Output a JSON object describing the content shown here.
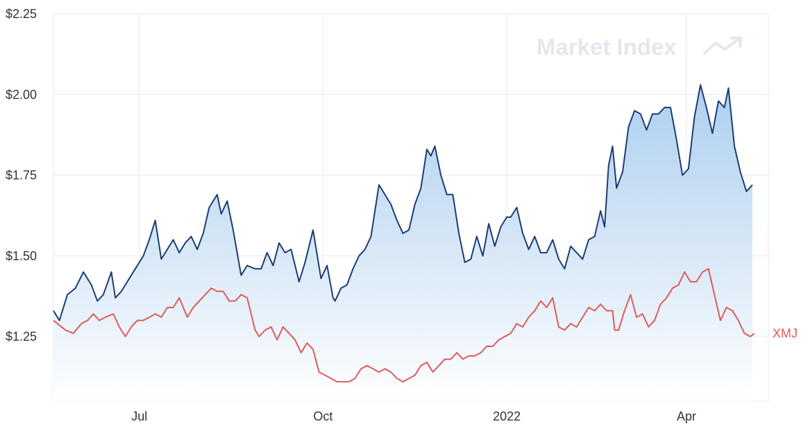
{
  "watermark": "Market Index",
  "colors": {
    "primary_line": "#1b3c74",
    "primary_fill_top": "#a9cdee",
    "primary_fill_bottom": "#ffffff",
    "comparison_line": "#e05a5a",
    "grid": "#e7e9ee",
    "axis_text": "#333333",
    "watermark": "#e3e8ef"
  },
  "chart_data": {
    "type": "line",
    "title": "",
    "xlabel": "",
    "ylabel": "",
    "ylim": [
      1.05,
      2.25
    ],
    "yticks": [
      1.25,
      1.5,
      1.75,
      2.0,
      2.25
    ],
    "ytick_labels": [
      "$1.25",
      "$1.50",
      "$1.75",
      "$2.00",
      "$2.25"
    ],
    "x_range": [
      "2021-05-19",
      "2022-05-12"
    ],
    "xticks": [
      {
        "date": "2021-07-01",
        "label": "Jul"
      },
      {
        "date": "2021-10-01",
        "label": "Oct"
      },
      {
        "date": "2022-01-01",
        "label": "2022"
      },
      {
        "date": "2022-04-01",
        "label": "Apr"
      }
    ],
    "grid": true,
    "legend": "label at end of comparison line",
    "series": [
      {
        "name": "",
        "style": "area",
        "points": [
          [
            "2021-05-19",
            1.33
          ],
          [
            "2021-05-22",
            1.3
          ],
          [
            "2021-05-26",
            1.38
          ],
          [
            "2021-05-30",
            1.4
          ],
          [
            "2021-06-03",
            1.45
          ],
          [
            "2021-06-07",
            1.41
          ],
          [
            "2021-06-10",
            1.36
          ],
          [
            "2021-06-13",
            1.38
          ],
          [
            "2021-06-17",
            1.45
          ],
          [
            "2021-06-19",
            1.37
          ],
          [
            "2021-06-22",
            1.39
          ],
          [
            "2021-06-26",
            1.43
          ],
          [
            "2021-06-30",
            1.47
          ],
          [
            "2021-07-03",
            1.5
          ],
          [
            "2021-07-06",
            1.55
          ],
          [
            "2021-07-09",
            1.61
          ],
          [
            "2021-07-12",
            1.49
          ],
          [
            "2021-07-15",
            1.52
          ],
          [
            "2021-07-18",
            1.55
          ],
          [
            "2021-07-21",
            1.51
          ],
          [
            "2021-07-24",
            1.54
          ],
          [
            "2021-07-27",
            1.56
          ],
          [
            "2021-07-30",
            1.52
          ],
          [
            "2021-08-02",
            1.57
          ],
          [
            "2021-08-05",
            1.65
          ],
          [
            "2021-08-09",
            1.69
          ],
          [
            "2021-08-11",
            1.63
          ],
          [
            "2021-08-14",
            1.67
          ],
          [
            "2021-08-17",
            1.58
          ],
          [
            "2021-08-21",
            1.44
          ],
          [
            "2021-08-24",
            1.47
          ],
          [
            "2021-08-28",
            1.46
          ],
          [
            "2021-08-31",
            1.46
          ],
          [
            "2021-09-03",
            1.51
          ],
          [
            "2021-09-06",
            1.47
          ],
          [
            "2021-09-09",
            1.54
          ],
          [
            "2021-09-12",
            1.51
          ],
          [
            "2021-09-15",
            1.52
          ],
          [
            "2021-09-19",
            1.42
          ],
          [
            "2021-09-22",
            1.48
          ],
          [
            "2021-09-26",
            1.58
          ],
          [
            "2021-09-30",
            1.43
          ],
          [
            "2021-10-03",
            1.47
          ],
          [
            "2021-10-06",
            1.37
          ],
          [
            "2021-10-07",
            1.36
          ],
          [
            "2021-10-10",
            1.4
          ],
          [
            "2021-10-13",
            1.41
          ],
          [
            "2021-10-16",
            1.46
          ],
          [
            "2021-10-19",
            1.5
          ],
          [
            "2021-10-22",
            1.52
          ],
          [
            "2021-10-25",
            1.56
          ],
          [
            "2021-10-29",
            1.72
          ],
          [
            "2021-11-01",
            1.69
          ],
          [
            "2021-11-04",
            1.66
          ],
          [
            "2021-11-07",
            1.61
          ],
          [
            "2021-11-10",
            1.57
          ],
          [
            "2021-11-13",
            1.58
          ],
          [
            "2021-11-16",
            1.66
          ],
          [
            "2021-11-19",
            1.71
          ],
          [
            "2021-11-22",
            1.83
          ],
          [
            "2021-11-24",
            1.81
          ],
          [
            "2021-11-26",
            1.84
          ],
          [
            "2021-11-29",
            1.75
          ],
          [
            "2021-12-02",
            1.69
          ],
          [
            "2021-12-05",
            1.69
          ],
          [
            "2021-12-08",
            1.57
          ],
          [
            "2021-12-11",
            1.48
          ],
          [
            "2021-12-14",
            1.49
          ],
          [
            "2021-12-17",
            1.56
          ],
          [
            "2021-12-20",
            1.5
          ],
          [
            "2021-12-23",
            1.6
          ],
          [
            "2021-12-26",
            1.53
          ],
          [
            "2021-12-29",
            1.59
          ],
          [
            "2022-01-01",
            1.62
          ],
          [
            "2022-01-03",
            1.62
          ],
          [
            "2022-01-06",
            1.65
          ],
          [
            "2022-01-09",
            1.57
          ],
          [
            "2022-01-12",
            1.52
          ],
          [
            "2022-01-15",
            1.56
          ],
          [
            "2022-01-18",
            1.51
          ],
          [
            "2022-01-21",
            1.51
          ],
          [
            "2022-01-24",
            1.55
          ],
          [
            "2022-01-27",
            1.49
          ],
          [
            "2022-01-30",
            1.46
          ],
          [
            "2022-02-02",
            1.53
          ],
          [
            "2022-02-05",
            1.51
          ],
          [
            "2022-02-08",
            1.49
          ],
          [
            "2022-02-11",
            1.55
          ],
          [
            "2022-02-14",
            1.56
          ],
          [
            "2022-02-17",
            1.64
          ],
          [
            "2022-02-19",
            1.59
          ],
          [
            "2022-02-21",
            1.78
          ],
          [
            "2022-02-23",
            1.84
          ],
          [
            "2022-02-25",
            1.71
          ],
          [
            "2022-02-28",
            1.76
          ],
          [
            "2022-03-03",
            1.9
          ],
          [
            "2022-03-06",
            1.95
          ],
          [
            "2022-03-09",
            1.94
          ],
          [
            "2022-03-12",
            1.89
          ],
          [
            "2022-03-15",
            1.94
          ],
          [
            "2022-03-18",
            1.94
          ],
          [
            "2022-03-21",
            1.96
          ],
          [
            "2022-03-24",
            1.96
          ],
          [
            "2022-03-27",
            1.86
          ],
          [
            "2022-03-30",
            1.75
          ],
          [
            "2022-04-02",
            1.77
          ],
          [
            "2022-04-05",
            1.93
          ],
          [
            "2022-04-08",
            2.03
          ],
          [
            "2022-04-11",
            1.96
          ],
          [
            "2022-04-14",
            1.88
          ],
          [
            "2022-04-17",
            1.98
          ],
          [
            "2022-04-20",
            1.96
          ],
          [
            "2022-04-22",
            2.02
          ],
          [
            "2022-04-25",
            1.84
          ],
          [
            "2022-04-28",
            1.76
          ],
          [
            "2022-05-01",
            1.7
          ],
          [
            "2022-05-04",
            1.72
          ]
        ]
      },
      {
        "name": "XMJ",
        "style": "line",
        "points": [
          [
            "2021-05-19",
            1.3
          ],
          [
            "2021-05-25",
            1.27
          ],
          [
            "2021-05-29",
            1.26
          ],
          [
            "2021-06-02",
            1.29
          ],
          [
            "2021-06-05",
            1.3
          ],
          [
            "2021-06-08",
            1.32
          ],
          [
            "2021-06-11",
            1.3
          ],
          [
            "2021-06-14",
            1.31
          ],
          [
            "2021-06-18",
            1.32
          ],
          [
            "2021-06-21",
            1.28
          ],
          [
            "2021-06-24",
            1.25
          ],
          [
            "2021-06-27",
            1.28
          ],
          [
            "2021-06-30",
            1.3
          ],
          [
            "2021-07-03",
            1.3
          ],
          [
            "2021-07-06",
            1.31
          ],
          [
            "2021-07-09",
            1.32
          ],
          [
            "2021-07-12",
            1.31
          ],
          [
            "2021-07-15",
            1.34
          ],
          [
            "2021-07-18",
            1.34
          ],
          [
            "2021-07-21",
            1.37
          ],
          [
            "2021-07-25",
            1.31
          ],
          [
            "2021-07-28",
            1.34
          ],
          [
            "2021-07-31",
            1.36
          ],
          [
            "2021-08-03",
            1.38
          ],
          [
            "2021-08-06",
            1.4
          ],
          [
            "2021-08-09",
            1.39
          ],
          [
            "2021-08-12",
            1.39
          ],
          [
            "2021-08-15",
            1.36
          ],
          [
            "2021-08-18",
            1.36
          ],
          [
            "2021-08-21",
            1.38
          ],
          [
            "2021-08-24",
            1.37
          ],
          [
            "2021-08-28",
            1.27
          ],
          [
            "2021-08-30",
            1.25
          ],
          [
            "2021-09-02",
            1.27
          ],
          [
            "2021-09-05",
            1.28
          ],
          [
            "2021-09-08",
            1.24
          ],
          [
            "2021-09-11",
            1.28
          ],
          [
            "2021-09-14",
            1.26
          ],
          [
            "2021-09-17",
            1.24
          ],
          [
            "2021-09-20",
            1.2
          ],
          [
            "2021-09-23",
            1.23
          ],
          [
            "2021-09-26",
            1.21
          ],
          [
            "2021-09-29",
            1.14
          ],
          [
            "2021-10-02",
            1.13
          ],
          [
            "2021-10-05",
            1.12
          ],
          [
            "2021-10-08",
            1.11
          ],
          [
            "2021-10-11",
            1.11
          ],
          [
            "2021-10-14",
            1.11
          ],
          [
            "2021-10-17",
            1.12
          ],
          [
            "2021-10-20",
            1.15
          ],
          [
            "2021-10-23",
            1.16
          ],
          [
            "2021-10-26",
            1.15
          ],
          [
            "2021-10-29",
            1.14
          ],
          [
            "2021-11-01",
            1.15
          ],
          [
            "2021-11-04",
            1.14
          ],
          [
            "2021-11-07",
            1.12
          ],
          [
            "2021-11-10",
            1.11
          ],
          [
            "2021-11-13",
            1.12
          ],
          [
            "2021-11-16",
            1.13
          ],
          [
            "2021-11-19",
            1.16
          ],
          [
            "2021-11-22",
            1.17
          ],
          [
            "2021-11-25",
            1.14
          ],
          [
            "2021-11-28",
            1.16
          ],
          [
            "2021-12-01",
            1.18
          ],
          [
            "2021-12-04",
            1.18
          ],
          [
            "2021-12-07",
            1.2
          ],
          [
            "2021-12-10",
            1.18
          ],
          [
            "2021-12-13",
            1.19
          ],
          [
            "2021-12-16",
            1.19
          ],
          [
            "2021-12-19",
            1.2
          ],
          [
            "2021-12-22",
            1.22
          ],
          [
            "2021-12-25",
            1.22
          ],
          [
            "2021-12-28",
            1.24
          ],
          [
            "2021-12-31",
            1.25
          ],
          [
            "2022-01-03",
            1.26
          ],
          [
            "2022-01-06",
            1.29
          ],
          [
            "2022-01-09",
            1.28
          ],
          [
            "2022-01-12",
            1.31
          ],
          [
            "2022-01-15",
            1.33
          ],
          [
            "2022-01-18",
            1.36
          ],
          [
            "2022-01-21",
            1.34
          ],
          [
            "2022-01-24",
            1.37
          ],
          [
            "2022-01-27",
            1.28
          ],
          [
            "2022-01-30",
            1.27
          ],
          [
            "2022-02-02",
            1.29
          ],
          [
            "2022-02-05",
            1.28
          ],
          [
            "2022-02-08",
            1.31
          ],
          [
            "2022-02-11",
            1.34
          ],
          [
            "2022-02-14",
            1.33
          ],
          [
            "2022-02-17",
            1.35
          ],
          [
            "2022-02-20",
            1.33
          ],
          [
            "2022-02-23",
            1.33
          ],
          [
            "2022-02-24",
            1.27
          ],
          [
            "2022-02-26",
            1.27
          ],
          [
            "2022-03-01",
            1.33
          ],
          [
            "2022-03-04",
            1.38
          ],
          [
            "2022-03-07",
            1.31
          ],
          [
            "2022-03-10",
            1.32
          ],
          [
            "2022-03-13",
            1.28
          ],
          [
            "2022-03-16",
            1.3
          ],
          [
            "2022-03-19",
            1.35
          ],
          [
            "2022-03-22",
            1.37
          ],
          [
            "2022-03-25",
            1.4
          ],
          [
            "2022-03-28",
            1.41
          ],
          [
            "2022-03-31",
            1.45
          ],
          [
            "2022-04-03",
            1.42
          ],
          [
            "2022-04-06",
            1.42
          ],
          [
            "2022-04-09",
            1.45
          ],
          [
            "2022-04-12",
            1.46
          ],
          [
            "2022-04-15",
            1.38
          ],
          [
            "2022-04-18",
            1.3
          ],
          [
            "2022-04-21",
            1.34
          ],
          [
            "2022-04-24",
            1.33
          ],
          [
            "2022-04-27",
            1.3
          ],
          [
            "2022-04-30",
            1.26
          ],
          [
            "2022-05-03",
            1.25
          ],
          [
            "2022-05-05",
            1.26
          ]
        ]
      }
    ]
  }
}
